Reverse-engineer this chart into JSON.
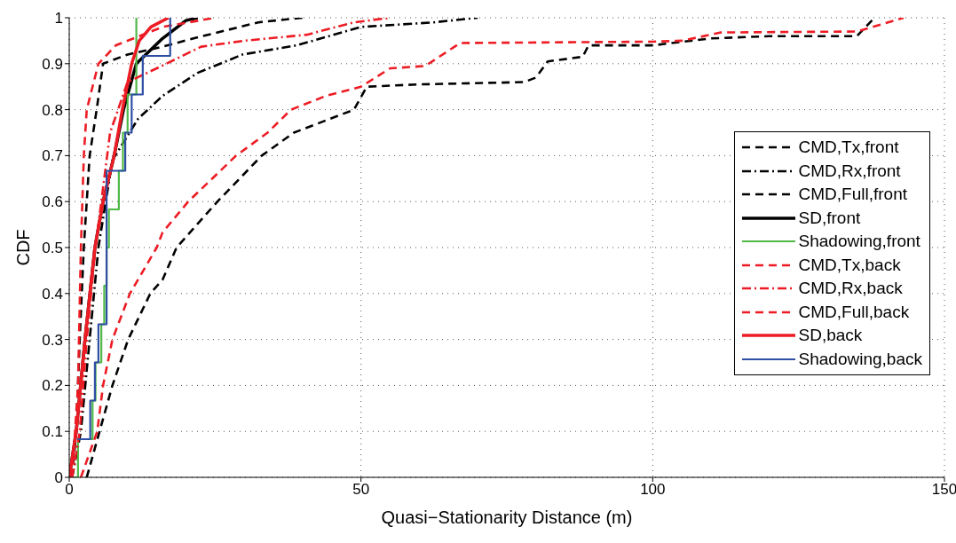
{
  "chart_data": {
    "type": "line",
    "xlabel": "Quasi−Stationarity Distance (m)",
    "ylabel": "CDF",
    "xlim": [
      0,
      150
    ],
    "xticks": [
      0,
      50,
      100,
      150
    ],
    "ylim": [
      0,
      1
    ],
    "yticks": [
      0,
      0.1,
      0.2,
      0.3,
      0.4,
      0.5,
      0.6,
      0.7,
      0.8,
      0.9,
      1
    ],
    "grid": true,
    "legend": "right",
    "series": [
      {
        "name": "CMD,Tx,front",
        "color": "#000000",
        "line_style": "dashed",
        "x": [
          3,
          5.2,
          7.4,
          10.1,
          13.9,
          16,
          18.4,
          25.4,
          33,
          38.5,
          48.8,
          51,
          60,
          78,
          80,
          82,
          88,
          89,
          100,
          110,
          120,
          135,
          138
        ],
        "values": [
          0,
          0.1,
          0.2,
          0.3,
          0.4,
          0.43,
          0.5,
          0.6,
          0.7,
          0.75,
          0.8,
          0.85,
          0.855,
          0.86,
          0.87,
          0.905,
          0.915,
          0.94,
          0.94,
          0.955,
          0.96,
          0.96,
          1
        ]
      },
      {
        "name": "CMD,Rx,front",
        "color": "#000000",
        "line_style": "dashdot",
        "x": [
          0.5,
          2,
          3.5,
          5,
          7.4,
          11.8,
          16,
          22,
          29.7,
          39,
          50,
          62.5,
          70
        ],
        "values": [
          0,
          0.1,
          0.3,
          0.5,
          0.69,
          0.78,
          0.83,
          0.88,
          0.92,
          0.94,
          0.98,
          0.99,
          1
        ]
      },
      {
        "name": "CMD,Full,front",
        "color": "#000000",
        "line_style": "dashed",
        "x": [
          0.5,
          1.2,
          1.8,
          2.5,
          3.5,
          4.7,
          5.8,
          10,
          16,
          21.6,
          32.4,
          40
        ],
        "values": [
          0,
          0.1,
          0.3,
          0.5,
          0.7,
          0.8,
          0.9,
          0.92,
          0.937,
          0.956,
          0.99,
          1
        ]
      },
      {
        "name": "SD,front",
        "color": "#000000",
        "line_style": "solid",
        "x": [
          0,
          1.2,
          2.7,
          4.4,
          5.8,
          7.7,
          9.3,
          11.5,
          16,
          20,
          22
        ],
        "values": [
          0,
          0.1,
          0.3,
          0.5,
          0.6,
          0.7,
          0.8,
          0.9,
          0.955,
          0.994,
          1
        ]
      },
      {
        "name": "Shadowing,front",
        "color": "#50b848",
        "type": "step",
        "x": [
          0,
          1.5,
          4,
          4.5,
          5.5,
          6,
          6.4,
          6.8,
          8.5,
          9.2,
          10,
          11.5
        ],
        "values": [
          0,
          0.083,
          0.167,
          0.25,
          0.333,
          0.417,
          0.5,
          0.583,
          0.667,
          0.75,
          0.833,
          1
        ]
      },
      {
        "name": "CMD,Tx,back",
        "color": "#ed1c24",
        "line_style": "dashed",
        "x": [
          2,
          4.8,
          5.8,
          7.4,
          10.4,
          15,
          16,
          20.4,
          28.6,
          34,
          38,
          44,
          50,
          55,
          61,
          67,
          100,
          105,
          111.7,
          135,
          143
        ],
        "values": [
          0,
          0.1,
          0.2,
          0.3,
          0.4,
          0.5,
          0.533,
          0.6,
          0.7,
          0.75,
          0.8,
          0.83,
          0.85,
          0.89,
          0.895,
          0.945,
          0.948,
          0.95,
          0.968,
          0.97,
          1
        ]
      },
      {
        "name": "CMD,Rx,back",
        "color": "#ed1c24",
        "line_style": "dashdot",
        "x": [
          0.5,
          1.8,
          3,
          4.5,
          7,
          10,
          16,
          22.6,
          30,
          40.7,
          48.8,
          55
        ],
        "values": [
          0,
          0.1,
          0.3,
          0.5,
          0.75,
          0.86,
          0.896,
          0.937,
          0.95,
          0.963,
          0.99,
          1
        ]
      },
      {
        "name": "CMD,Full,back",
        "color": "#ed1c24",
        "line_style": "dashed",
        "x": [
          0.5,
          1.5,
          2,
          2.5,
          3,
          5,
          8,
          12,
          16,
          25
        ],
        "values": [
          0,
          0.2,
          0.5,
          0.7,
          0.8,
          0.9,
          0.94,
          0.96,
          0.98,
          1
        ]
      },
      {
        "name": "SD,back",
        "color": "#ed1c24",
        "line_style": "solid",
        "x": [
          0,
          1.2,
          2.7,
          4.4,
          5.8,
          7.7,
          9.1,
          10.7,
          12,
          14,
          17
        ],
        "values": [
          0,
          0.1,
          0.3,
          0.5,
          0.6,
          0.7,
          0.8,
          0.9,
          0.95,
          0.98,
          1
        ]
      },
      {
        "name": "Shadowing,back",
        "color": "#2e4ea3",
        "type": "step",
        "x": [
          1.4,
          3.6,
          4.4,
          5,
          6.4,
          9.6,
          10.7,
          12.6,
          17.3
        ],
        "values": [
          0.083,
          0.167,
          0.25,
          0.333,
          0.667,
          0.75,
          0.833,
          0.917,
          1
        ]
      }
    ]
  }
}
